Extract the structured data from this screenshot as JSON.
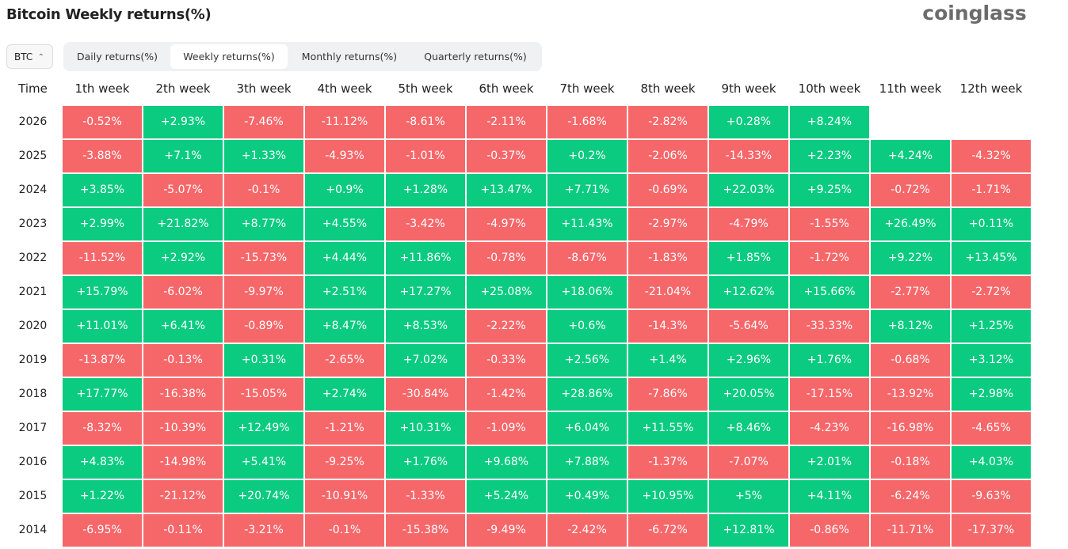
{
  "header": {
    "title": "Bitcoin Weekly returns(%)",
    "logo": "coinglass"
  },
  "controls": {
    "select": "BTC",
    "tabs": [
      "Daily returns(%)",
      "Weekly returns(%)",
      "Monthly returns(%)",
      "Quarterly returns(%)"
    ],
    "active_tab": 1
  },
  "table": {
    "time_header": "Time",
    "columns": [
      "1th week",
      "2th week",
      "3th week",
      "4th week",
      "5th week",
      "6th week",
      "7th week",
      "8th week",
      "9th week",
      "10th week",
      "11th week",
      "12th week"
    ],
    "rows": [
      {
        "year": "2026",
        "cells": [
          "-0.52%",
          "+2.93%",
          "-7.46%",
          "-11.12%",
          "-8.61%",
          "-2.11%",
          "-1.68%",
          "-2.82%",
          "+0.28%",
          "+8.24%"
        ]
      },
      {
        "year": "2025",
        "cells": [
          "-3.88%",
          "+7.1%",
          "+1.33%",
          "-4.93%",
          "-1.01%",
          "-0.37%",
          "+0.2%",
          "-2.06%",
          "-14.33%",
          "+2.23%",
          "+4.24%",
          "-4.32%"
        ]
      },
      {
        "year": "2024",
        "cells": [
          "+3.85%",
          "-5.07%",
          "-0.1%",
          "+0.9%",
          "+1.28%",
          "+13.47%",
          "+7.71%",
          "-0.69%",
          "+22.03%",
          "+9.25%",
          "-0.72%",
          "-1.71%"
        ]
      },
      {
        "year": "2023",
        "cells": [
          "+2.99%",
          "+21.82%",
          "+8.77%",
          "+4.55%",
          "-3.42%",
          "-4.97%",
          "+11.43%",
          "-2.97%",
          "-4.79%",
          "-1.55%",
          "+26.49%",
          "+0.11%"
        ]
      },
      {
        "year": "2022",
        "cells": [
          "-11.52%",
          "+2.92%",
          "-15.73%",
          "+4.44%",
          "+11.86%",
          "-0.78%",
          "-8.67%",
          "-1.83%",
          "+1.85%",
          "-1.72%",
          "+9.22%",
          "+13.45%"
        ]
      },
      {
        "year": "2021",
        "cells": [
          "+15.79%",
          "-6.02%",
          "-9.97%",
          "+2.51%",
          "+17.27%",
          "+25.08%",
          "+18.06%",
          "-21.04%",
          "+12.62%",
          "+15.66%",
          "-2.77%",
          "-2.72%"
        ]
      },
      {
        "year": "2020",
        "cells": [
          "+11.01%",
          "+6.41%",
          "-0.89%",
          "+8.47%",
          "+8.53%",
          "-2.22%",
          "+0.6%",
          "-14.3%",
          "-5.64%",
          "-33.33%",
          "+8.12%",
          "+1.25%"
        ]
      },
      {
        "year": "2019",
        "cells": [
          "-13.87%",
          "-0.13%",
          "+0.31%",
          "-2.65%",
          "+7.02%",
          "-0.33%",
          "+2.56%",
          "+1.4%",
          "+2.96%",
          "+1.76%",
          "-0.68%",
          "+3.12%"
        ]
      },
      {
        "year": "2018",
        "cells": [
          "+17.77%",
          "-16.38%",
          "-15.05%",
          "+2.74%",
          "-30.84%",
          "-1.42%",
          "+28.86%",
          "-7.86%",
          "+20.05%",
          "-17.15%",
          "-13.92%",
          "+2.98%"
        ]
      },
      {
        "year": "2017",
        "cells": [
          "-8.32%",
          "-10.39%",
          "+12.49%",
          "-1.21%",
          "+10.31%",
          "-1.09%",
          "+6.04%",
          "+11.55%",
          "+8.46%",
          "-4.23%",
          "-16.98%",
          "-4.65%"
        ]
      },
      {
        "year": "2016",
        "cells": [
          "+4.83%",
          "-14.98%",
          "+5.41%",
          "-9.25%",
          "+1.76%",
          "+9.68%",
          "+7.88%",
          "-1.37%",
          "-7.07%",
          "+2.01%",
          "-0.18%",
          "+4.03%"
        ]
      },
      {
        "year": "2015",
        "cells": [
          "+1.22%",
          "-21.12%",
          "+20.74%",
          "-10.91%",
          "-1.33%",
          "+5.24%",
          "+0.49%",
          "+10.95%",
          "+5%",
          "+4.11%",
          "-6.24%",
          "-9.63%"
        ]
      },
      {
        "year": "2014",
        "cells": [
          "-6.95%",
          "-0.11%",
          "-3.21%",
          "-0.1%",
          "-15.38%",
          "-9.49%",
          "-2.42%",
          "-6.72%",
          "+12.81%",
          "-0.86%",
          "-11.71%",
          "-17.37%"
        ]
      }
    ]
  }
}
